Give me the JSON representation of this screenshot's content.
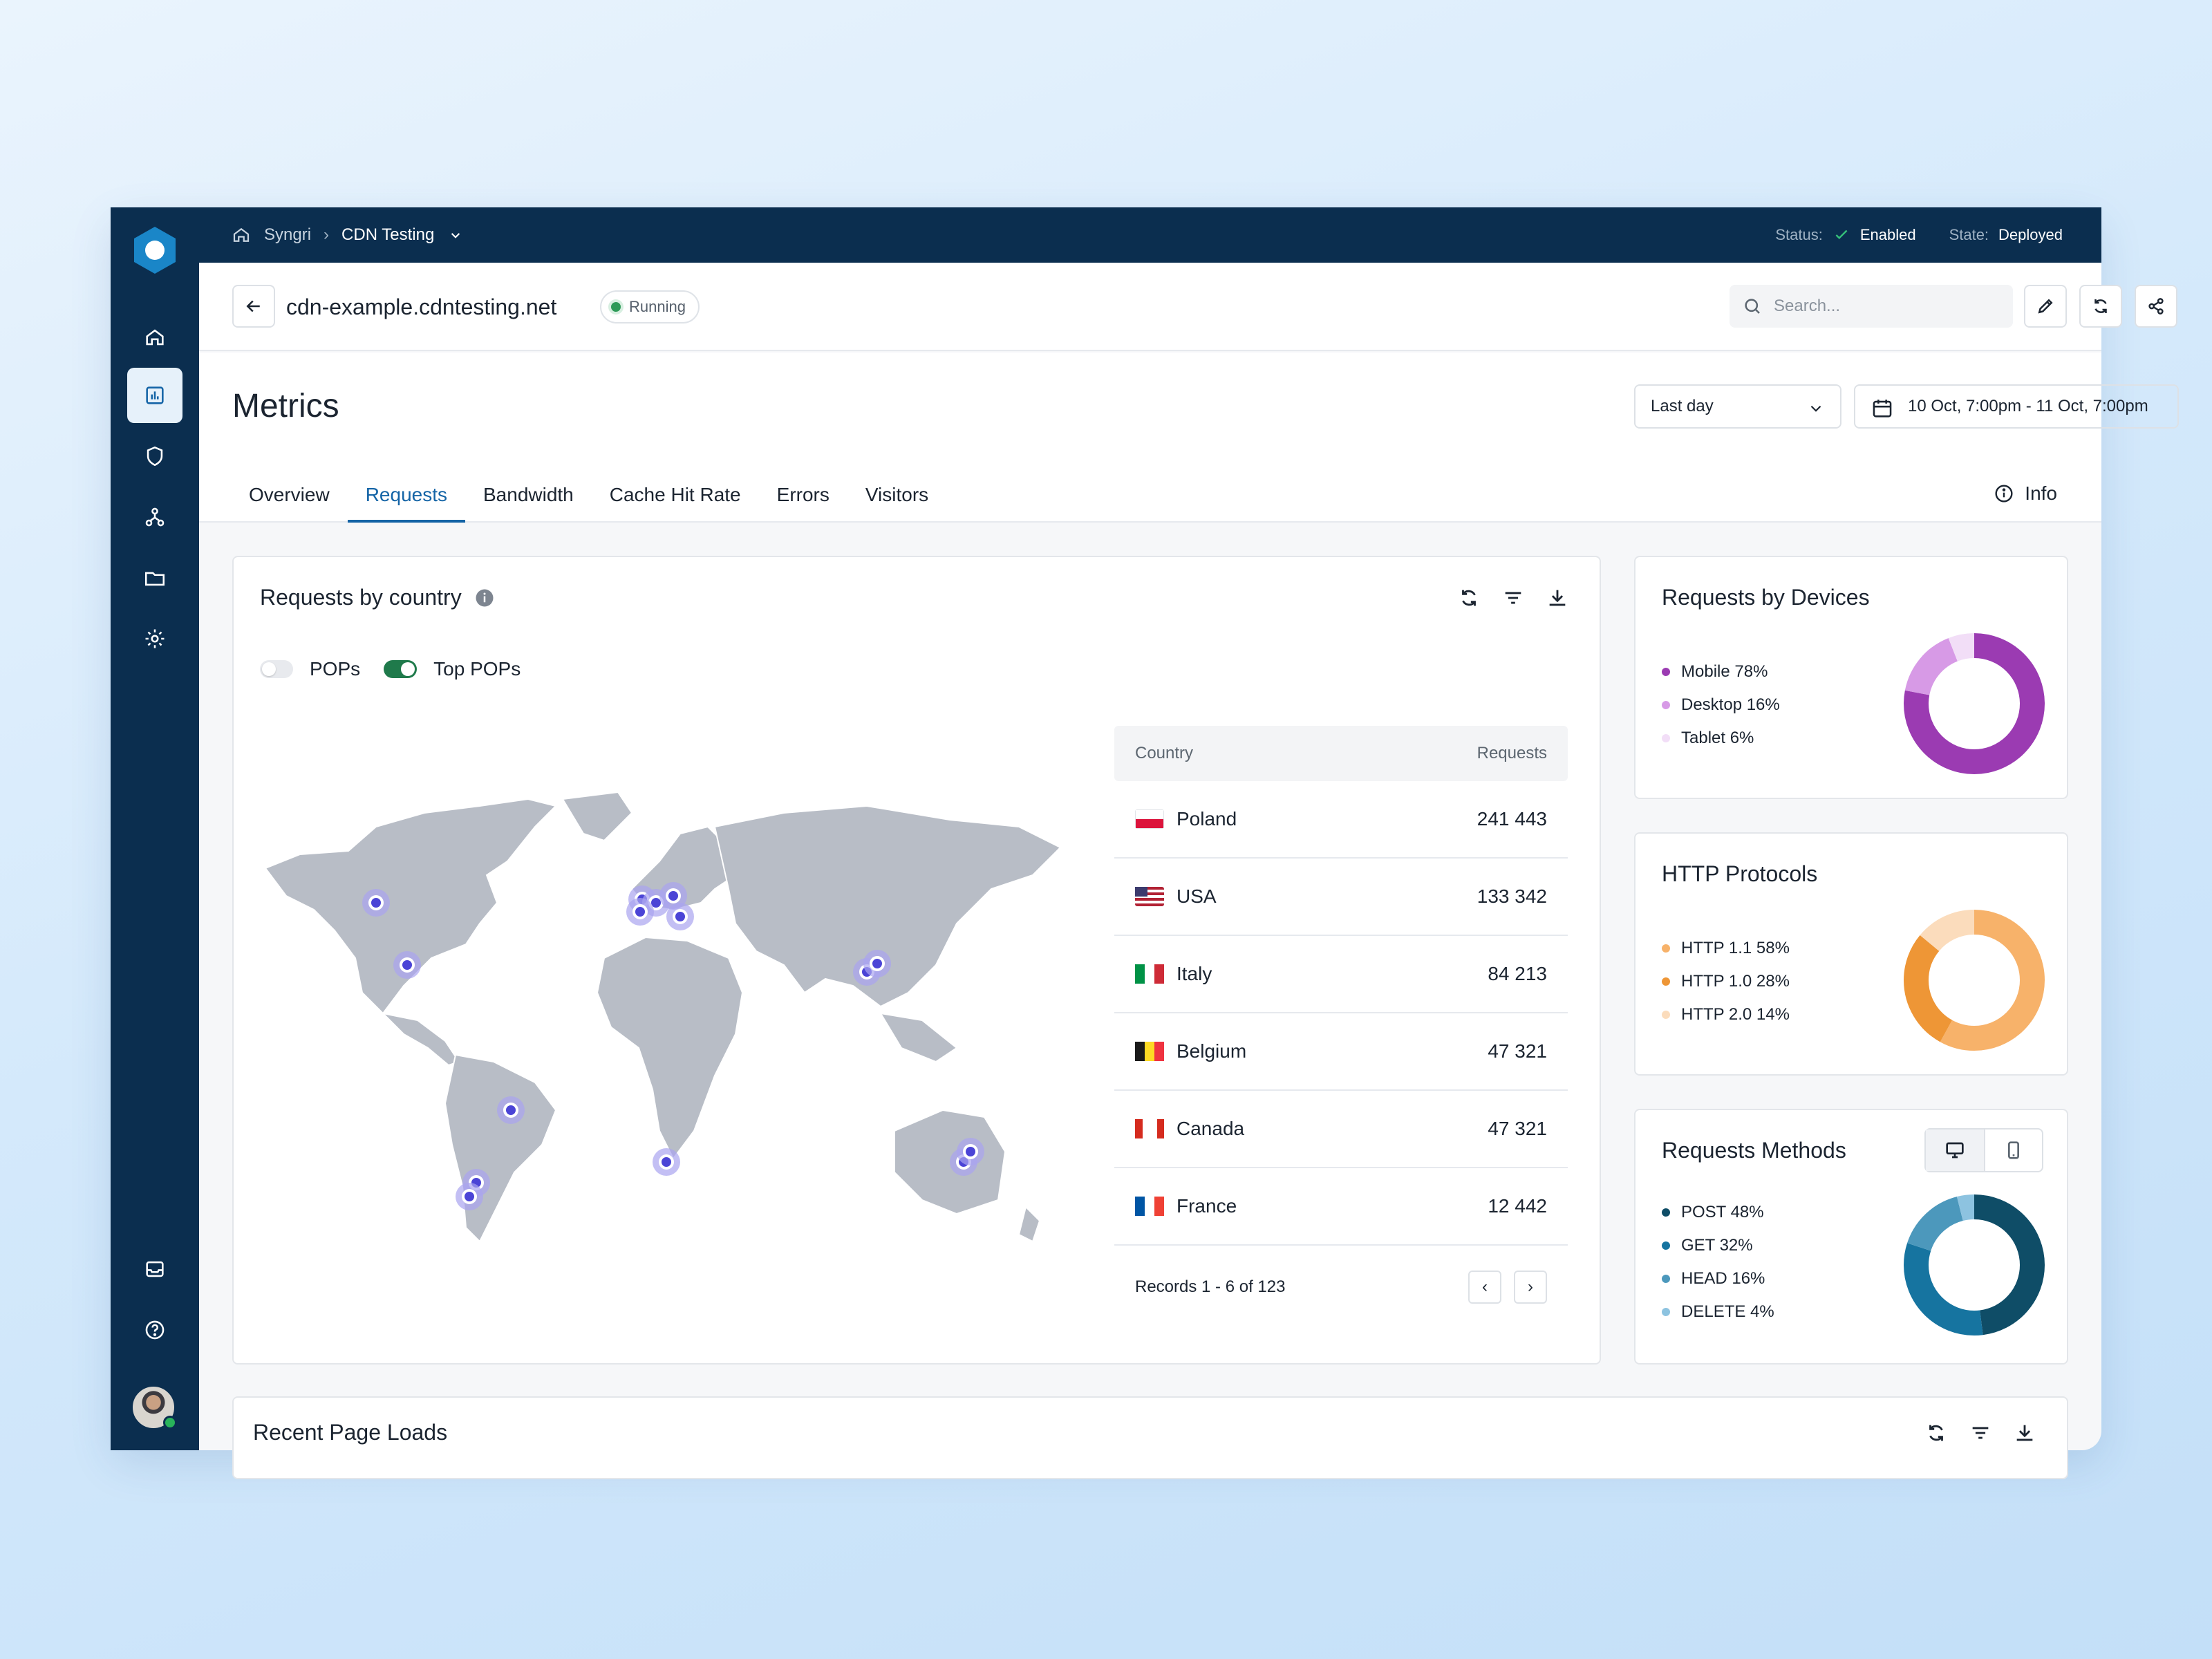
{
  "breadcrumb": {
    "root": "Syngri",
    "project": "CDN Testing"
  },
  "status": {
    "status_label": "Status:",
    "status_value": "Enabled",
    "state_label": "State:",
    "state_value": "Deployed"
  },
  "header": {
    "hostname": "cdn-example.cdntesting.net",
    "badge": "Running",
    "search_placeholder": "Search..."
  },
  "page": {
    "title": "Metrics",
    "period": "Last day",
    "date_range": "10 Oct, 7:00pm - 11 Oct, 7:00pm",
    "info": "Info"
  },
  "tabs": [
    {
      "label": "Overview"
    },
    {
      "label": "Requests"
    },
    {
      "label": "Bandwidth"
    },
    {
      "label": "Cache Hit Rate"
    },
    {
      "label": "Errors"
    },
    {
      "label": "Visitors"
    }
  ],
  "active_tab": "Requests",
  "country_card": {
    "title": "Requests by country",
    "toggle_pops": "POPs",
    "toggle_top_pops": "Top POPs",
    "pops_on": false,
    "top_pops_on": true,
    "table_header": {
      "country": "Country",
      "requests": "Requests"
    },
    "rows": [
      {
        "country": "Poland",
        "requests": "241 443",
        "flag": [
          "#ffffff",
          "#dc143c"
        ],
        "flag_dir": "h"
      },
      {
        "country": "USA",
        "requests": "133 342",
        "flag": [
          "#b22234",
          "#ffffff",
          "#3c3b6e"
        ],
        "flag_dir": "us"
      },
      {
        "country": "Italy",
        "requests": "84 213",
        "flag": [
          "#009246",
          "#ffffff",
          "#ce2b37"
        ],
        "flag_dir": "v"
      },
      {
        "country": "Belgium",
        "requests": "47 321",
        "flag": [
          "#1a1a1a",
          "#fdda24",
          "#ef3340"
        ],
        "flag_dir": "v"
      },
      {
        "country": "Canada",
        "requests": "47 321",
        "flag": [
          "#d52b1e",
          "#ffffff",
          "#d52b1e"
        ],
        "flag_dir": "ca"
      },
      {
        "country": "France",
        "requests": "12 442",
        "flag": [
          "#0055a4",
          "#ffffff",
          "#ef4135"
        ],
        "flag_dir": "v"
      }
    ],
    "records": "Records 1 - 6 of 123",
    "pager_prev": "‹",
    "pager_next": "›"
  },
  "devices_card": {
    "title": "Requests by Devices",
    "items": [
      {
        "label": "Mobile 78%",
        "value": 78,
        "color": "#9b3bb2"
      },
      {
        "label": "Desktop 16%",
        "value": 16,
        "color": "#d79ae6"
      },
      {
        "label": "Tablet 6%",
        "value": 6,
        "color": "#f2def7"
      }
    ]
  },
  "protocols_card": {
    "title": "HTTP Protocols",
    "items": [
      {
        "label": "HTTP 1.1 58%",
        "value": 58,
        "color": "#f7b26a"
      },
      {
        "label": "HTTP 1.0 28%",
        "value": 28,
        "color": "#ee9636"
      },
      {
        "label": "HTTP 2.0 14%",
        "value": 14,
        "color": "#fbdcbc"
      }
    ]
  },
  "methods_card": {
    "title": "Requests Methods",
    "items": [
      {
        "label": "POST 48%",
        "value": 48,
        "color": "#0f4d67"
      },
      {
        "label": "GET 32%",
        "value": 32,
        "color": "#1674a0"
      },
      {
        "label": "HEAD 16%",
        "value": 16,
        "color": "#4c98bc"
      },
      {
        "label": "DELETE 4%",
        "value": 4,
        "color": "#8dc3e0"
      }
    ]
  },
  "recent_card": {
    "title": "Recent Page Loads"
  },
  "colors": {
    "navy": "#0b2e4f",
    "accent": "#1464a6",
    "pin": "#4b44d6",
    "land": "#b8bdc6"
  }
}
